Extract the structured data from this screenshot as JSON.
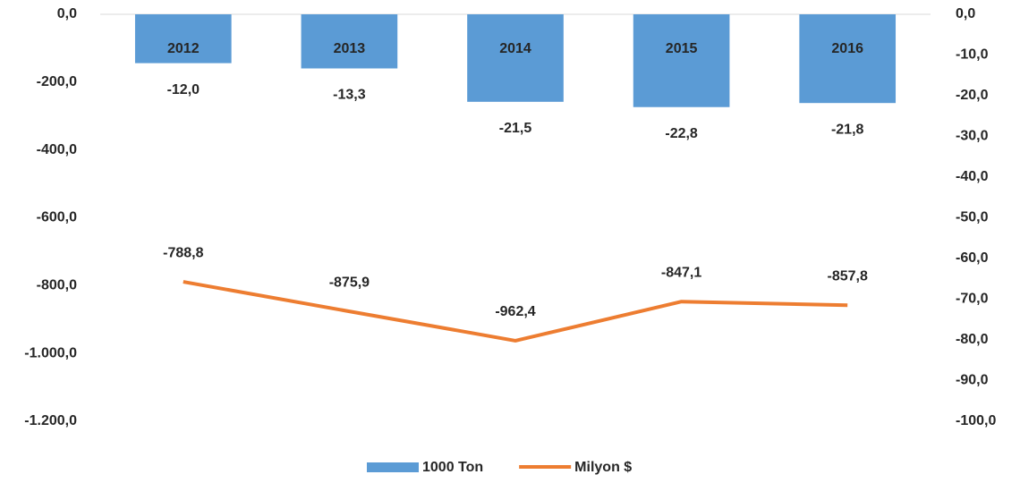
{
  "chart_data": {
    "type": "combo",
    "categories": [
      "2012",
      "2013",
      "2014",
      "2015",
      "2016"
    ],
    "series": [
      {
        "name": "1000 Ton",
        "type": "bar",
        "axis": "y2",
        "color": "#5b9bd5",
        "values": [
          -12.0,
          -13.3,
          -21.5,
          -22.8,
          -21.8
        ],
        "value_labels": [
          "-12,0",
          "-13,3",
          "-21,5",
          "-22,8",
          "-21,8"
        ]
      },
      {
        "name": "Milyon $",
        "type": "line",
        "axis": "y",
        "color": "#ed7d31",
        "values": [
          -788.8,
          -875.9,
          -962.4,
          -847.1,
          -857.8
        ],
        "value_labels": [
          "-788,8",
          "-875,9",
          "-962,4",
          "-847,1",
          "-857,8"
        ]
      }
    ],
    "ylim": [
      0,
      -1200
    ],
    "yticks": [
      {
        "value": 0,
        "label": "0,0"
      },
      {
        "value": -200,
        "label": "-200,0"
      },
      {
        "value": -400,
        "label": "-400,0"
      },
      {
        "value": -600,
        "label": "-600,0"
      },
      {
        "value": -800,
        "label": "-800,0"
      },
      {
        "value": -1000,
        "label": "-1.000,0"
      },
      {
        "value": -1200,
        "label": "-1.200,0"
      }
    ],
    "y2lim": [
      0,
      -100
    ],
    "y2ticks": [
      {
        "value": 0,
        "label": "0,0"
      },
      {
        "value": -10,
        "label": "-10,0"
      },
      {
        "value": -20,
        "label": "-20,0"
      },
      {
        "value": -30,
        "label": "-30,0"
      },
      {
        "value": -40,
        "label": "-40,0"
      },
      {
        "value": -50,
        "label": "-50,0"
      },
      {
        "value": -60,
        "label": "-60,0"
      },
      {
        "value": -70,
        "label": "-70,0"
      },
      {
        "value": -80,
        "label": "-80,0"
      },
      {
        "value": -90,
        "label": "-90,0"
      },
      {
        "value": -100,
        "label": "-100,0"
      }
    ],
    "grid": false,
    "legend": "bottom"
  }
}
